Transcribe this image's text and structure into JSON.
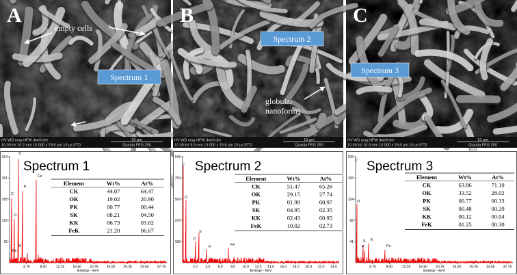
{
  "panels": [
    {
      "label": "A",
      "annotations": [
        "empty cells"
      ],
      "spectrum_label": "Spectrum 1",
      "info": {
        "header": "HV    WD    mag    HFW   dwell  det",
        "values": "10.00 kV 10.2 mm 10 000 x 29.8 µm 10 µs ETD",
        "scale": "10 µm",
        "instrument": "Quanta FEG 250"
      },
      "spectrum": {
        "title": "Spectrum 1",
        "yticks": [
          "314",
          "251",
          "188",
          "126",
          "62"
        ],
        "xticks": [
          "3.75",
          "8.00",
          "12.25",
          "16.50",
          "20.75",
          "25.00",
          "29.25",
          "33.50",
          "37.75"
        ],
        "x_axis_label": "Energy - keV",
        "peaks": [
          "C",
          "O",
          "S",
          "K",
          "Fe",
          "Fe",
          "S"
        ]
      },
      "table": {
        "header": [
          "Element",
          "Wt%",
          "At%"
        ],
        "rows": [
          [
            "CK",
            "44.07",
            "64.47"
          ],
          [
            "OK",
            "19.02",
            "20.90"
          ],
          [
            "PK",
            "00.77",
            "00.44"
          ],
          [
            "SK",
            "08.21",
            "04.50"
          ],
          [
            "KK",
            "06.73",
            "03.02"
          ],
          [
            "FeK",
            "21.20",
            "06.67"
          ]
        ]
      }
    },
    {
      "label": "B",
      "annotations": [
        "globular",
        "nanoforms"
      ],
      "spectrum_label": "Spectrum 2",
      "info": {
        "header": "HV    WD    mag    HFW   dwell  det",
        "values": "10.00 kV 9.6 mm 10 000 x 29.8 µm 10 µs ETD",
        "scale": "10 µm",
        "instrument": "Quanta FEG 250"
      },
      "spectrum": {
        "title": "Spectrum 2",
        "yticks": [
          "949",
          "759",
          "569",
          "379",
          "189"
        ],
        "xticks": [
          "2.0",
          "4.0",
          "6.0",
          "8.0",
          "10.0",
          "12.0",
          "14.0",
          "16.0",
          "18.0",
          "20.0",
          "22.0",
          "24.0"
        ],
        "x_axis_label": "Energy - keV",
        "peaks": [
          "C",
          "O",
          "S",
          "P",
          "K",
          "Fe"
        ]
      },
      "table": {
        "header": [
          "Element",
          "Wt%",
          "At%"
        ],
        "rows": [
          [
            "CK",
            "51.47",
            "65.26"
          ],
          [
            "OK",
            "29.15",
            "27.74"
          ],
          [
            "PK",
            "01.98",
            "00.97"
          ],
          [
            "SK",
            "04.95",
            "02.35"
          ],
          [
            "KK",
            "02.43",
            "00.95"
          ],
          [
            "FeK",
            "10.02",
            "02.73"
          ]
        ]
      }
    },
    {
      "label": "C",
      "annotations": [],
      "spectrum_label": "Spectrum 3",
      "info": {
        "header": "HV    WD    mag    HFW   dwell  det",
        "values": "10.00 kV 10.3 mm 10 000 x 29.8 µm 10 µs ETD",
        "scale": "10 µm",
        "instrument": "Quanta FEG 250"
      },
      "spectrum": {
        "title": "Spectrum 3",
        "yticks": [
          "206",
          "165",
          "124",
          "82",
          "41"
        ],
        "xticks": [
          "3.75",
          "8.00",
          "12.25",
          "16.50",
          "20.75",
          "25.00",
          "29.25",
          "33.50",
          "37.75"
        ],
        "x_axis_label": "Energy - keV",
        "peaks": [
          "C",
          "O",
          "S",
          "P",
          "K",
          "Fe"
        ]
      },
      "table": {
        "header": [
          "Element",
          "Wt%",
          "At%"
        ],
        "rows": [
          [
            "CK",
            "63.86",
            "71.10"
          ],
          [
            "OK",
            "33.52",
            "28.02"
          ],
          [
            "PK",
            "00.77",
            "00.33"
          ],
          [
            "SK",
            "00.48",
            "00.20"
          ],
          [
            "KK",
            "00.12",
            "00.04"
          ],
          [
            "FeK",
            "01.25",
            "00.30"
          ]
        ]
      }
    }
  ]
}
